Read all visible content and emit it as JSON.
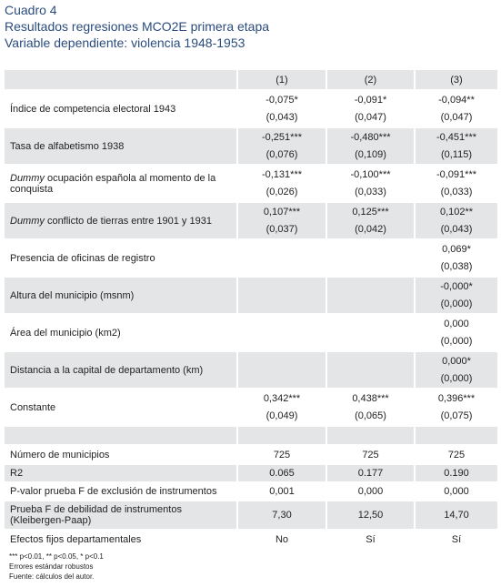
{
  "header": {
    "title": "Cuadro 4",
    "subtitle": "Resultados regresiones MCO2E primera etapa",
    "dependent": "Variable dependiente: violencia 1948-1953"
  },
  "table": {
    "columns": [
      "(1)",
      "(2)",
      "(3)"
    ],
    "rows": [
      {
        "label": "Índice de competencia electoral 1943",
        "coef": [
          "-0,075*",
          "-0,091*",
          "-0,094**"
        ],
        "se": [
          "(0,043)",
          "(0,047)",
          "(0,047)"
        ]
      },
      {
        "label": "Tasa de alfabetismo 1938",
        "coef": [
          "-0,251***",
          "-0,480***",
          "-0,451***"
        ],
        "se": [
          "(0,076)",
          "(0,109)",
          "(0,115)"
        ]
      },
      {
        "label_italic": "Dummy",
        "label": " ocupación española al momento de la conquista",
        "coef": [
          "-0,131***",
          "-0,100***",
          "-0,091***"
        ],
        "se": [
          "(0,026)",
          "(0,033)",
          "(0,033)"
        ]
      },
      {
        "label_italic": "Dummy",
        "label": " conflicto de tierras entre 1901 y 1931",
        "coef": [
          "0,107***",
          "0,125***",
          "0,102**"
        ],
        "se": [
          "(0,037)",
          "(0,042)",
          "(0,043)"
        ]
      },
      {
        "label": "Presencia de oficinas de registro",
        "coef": [
          null,
          null,
          "0,069*"
        ],
        "se": [
          null,
          null,
          "(0,038)"
        ]
      },
      {
        "label": "Altura del municipio (msnm)",
        "coef": [
          null,
          null,
          "-0,000*"
        ],
        "se": [
          null,
          null,
          "(0,000)"
        ]
      },
      {
        "label": "Área del municipio (km2)",
        "coef": [
          null,
          null,
          "0,000"
        ],
        "se": [
          null,
          null,
          "(0,000)"
        ]
      },
      {
        "label": "Distancia a la capital de departamento (km)",
        "coef": [
          null,
          null,
          "0,000*"
        ],
        "se": [
          null,
          null,
          "(0,000)"
        ]
      },
      {
        "label": "Constante",
        "coef": [
          "0,342***",
          "0,438***",
          "0,396***"
        ],
        "se": [
          "(0,049)",
          "(0,065)",
          "(0,075)"
        ]
      }
    ],
    "stats": [
      {
        "label": "Número de municipios",
        "values": [
          "725",
          "725",
          "725"
        ]
      },
      {
        "label": "R2",
        "values": [
          "0.065",
          "0.177",
          "0.190"
        ]
      },
      {
        "label": "P-valor prueba F de exclusión de instrumentos",
        "values": [
          "0,001",
          "0,000",
          "0,000"
        ]
      },
      {
        "label": "Prueba F de debilidad de instrumentos (Kleibergen-Paap)",
        "values": [
          "7,30",
          "12,50",
          "14,70"
        ]
      },
      {
        "label": "Efectos fijos departamentales",
        "values": [
          "No",
          "Sí",
          "Sí"
        ]
      }
    ]
  },
  "notes": [
    "*** p<0.01, ** p<0.05, * p<0.1",
    "Errores estándar robustos",
    "Fuente: cálculos del autor."
  ]
}
